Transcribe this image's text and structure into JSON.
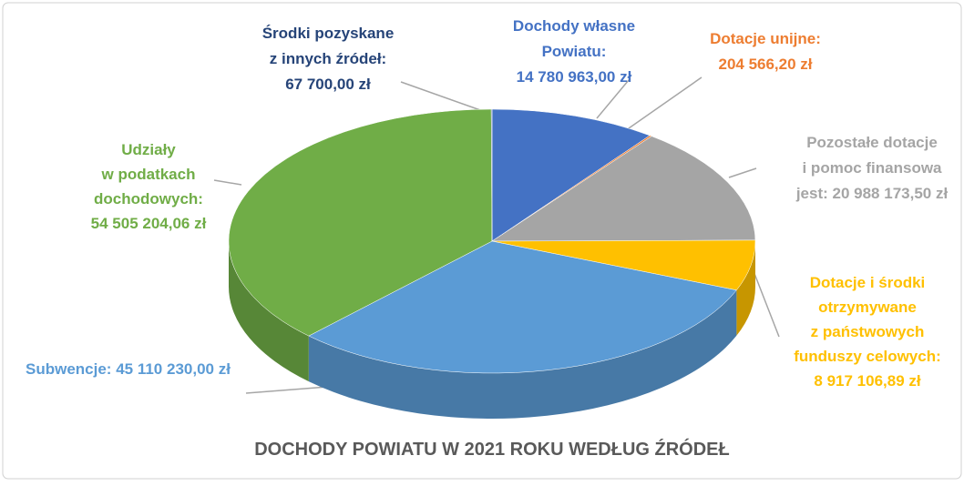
{
  "chart_data": {
    "type": "pie3d",
    "title": "DOCHODY POWIATU W 2021 ROKU WEDŁUG ŹRÓDEŁ",
    "categories": [
      [
        "Dochody własne",
        "Powiatu:"
      ],
      [
        "Dotacje unijne:"
      ],
      [
        "Pozostałe dotacje",
        "i pomoc finansowa",
        "jest:"
      ],
      [
        "Dotacje i środki",
        "otrzymywane",
        "z państwowych",
        "funduszy celowych:"
      ],
      [
        "Subwencje:"
      ],
      [
        "Udziały",
        "w podatkach",
        "dochodowych:"
      ],
      [
        "Środki pozyskane",
        "z innych źródeł:"
      ]
    ],
    "values": [
      14780963.0,
      204566.2,
      20988173.5,
      8917106.89,
      45110230.0,
      54505204.06,
      67700.0
    ],
    "value_labels": [
      "14 780 963,00 zł",
      "204 566,20 zł",
      "20 988 173,50 zł",
      "8 917 106,89 zł",
      "45 110 230,00 zł",
      "54 505 204,06 zł",
      "67 700,00 zł"
    ],
    "colors": [
      "#4472c4",
      "#ed7d31",
      "#a5a5a5",
      "#ffc000",
      "#5b9bd5",
      "#70ad47",
      "#264478"
    ]
  }
}
